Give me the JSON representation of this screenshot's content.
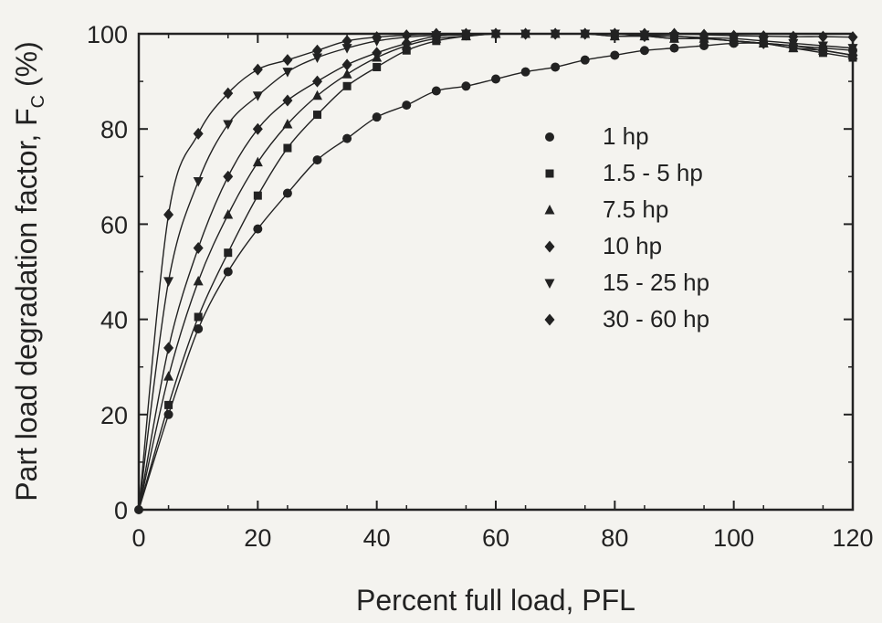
{
  "chart_data": {
    "type": "scatter",
    "title": "",
    "xlabel": "Percent full load, PFL",
    "ylabel_main": "Part load degradation factor, F",
    "ylabel_sub": "C",
    "ylabel_unit": " (%)",
    "xlim": [
      0,
      120
    ],
    "ylim": [
      0,
      100
    ],
    "xticks": [
      0,
      20,
      40,
      60,
      80,
      100,
      120
    ],
    "yticks": [
      0,
      20,
      40,
      60,
      80,
      100
    ],
    "grid": false,
    "legend_position": "center-right",
    "x": [
      0,
      5,
      10,
      15,
      20,
      25,
      30,
      35,
      40,
      45,
      50,
      55,
      60,
      65,
      70,
      75,
      80,
      85,
      90,
      95,
      100,
      105,
      110,
      115,
      120
    ],
    "series": [
      {
        "name": "1 hp",
        "marker": "circle",
        "values": [
          0,
          20,
          38,
          50,
          59,
          66.5,
          73.5,
          78,
          82.5,
          85,
          88,
          89,
          90.5,
          92,
          93,
          94.5,
          95.5,
          96.5,
          97,
          97.5,
          98,
          98,
          97.5,
          97,
          96.5
        ]
      },
      {
        "name": "1.5 - 5 hp",
        "marker": "square",
        "values": [
          0,
          22,
          40.5,
          54,
          66,
          76,
          83,
          89,
          93,
          96.5,
          98.5,
          99.5,
          100,
          100,
          100,
          100,
          99.5,
          99.5,
          99,
          99,
          98.5,
          98,
          97,
          96,
          95
        ]
      },
      {
        "name": "7.5 hp",
        "marker": "triangle-up",
        "values": [
          0,
          28,
          48,
          62,
          73,
          81,
          87,
          91.5,
          95,
          97.5,
          99,
          99.5,
          100,
          100,
          100,
          100,
          99.5,
          99.5,
          99,
          99,
          98.5,
          98,
          97,
          96.5,
          95.5
        ]
      },
      {
        "name": "10 hp",
        "marker": "diamond",
        "values": [
          0,
          34,
          55,
          70,
          80,
          86,
          90,
          93.5,
          96,
          98,
          99.5,
          99.8,
          100,
          100,
          100,
          100,
          100,
          99.5,
          99.5,
          99,
          98.5,
          98,
          97.5,
          96.5,
          95.5
        ]
      },
      {
        "name": "15 - 25 hp",
        "marker": "triangle-down",
        "values": [
          0,
          48,
          69,
          81,
          87,
          92,
          95,
          97,
          98.5,
          99.3,
          99.7,
          100,
          100,
          100,
          100,
          100,
          100,
          99.8,
          99.5,
          99.2,
          99,
          98.5,
          98,
          97.5,
          97
        ]
      },
      {
        "name": "30 - 60 hp",
        "marker": "diamond",
        "values": [
          0,
          62,
          79,
          87.5,
          92.5,
          94.5,
          96.5,
          98.5,
          99.3,
          99.7,
          100,
          100,
          100,
          100,
          100,
          100,
          100,
          100,
          100,
          99.8,
          99.6,
          99.5,
          99.4,
          99.4,
          99.3
        ]
      }
    ]
  }
}
